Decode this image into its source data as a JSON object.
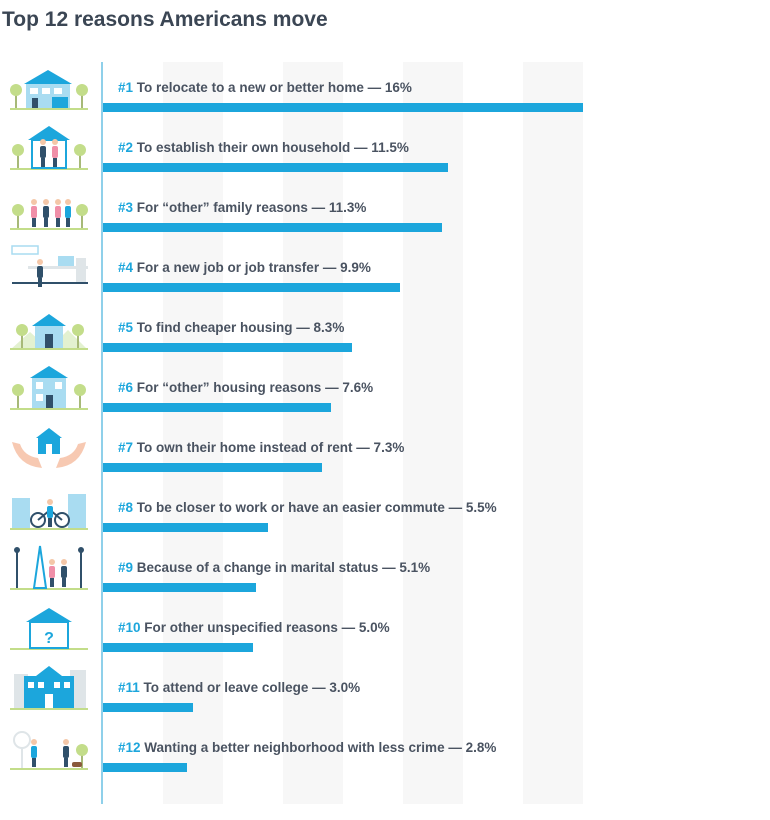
{
  "title": "Top 12 reasons Americans move",
  "colors": {
    "bar": "#1ca6dc",
    "rank": "#1ca6dc",
    "text": "#4a5361",
    "axis": "#8fd0ea"
  },
  "chart_data": {
    "type": "bar",
    "orientation": "horizontal",
    "title": "Top 12 reasons Americans move",
    "xlim": [
      0,
      16
    ],
    "grid": "alternating vertical stripes",
    "categories": [
      "To relocate to a new or better home",
      "To establish their own household",
      "For “other” family reasons",
      "For a new job or job transfer",
      "To find cheaper housing",
      "For “other” housing reasons",
      "To own their home instead of rent",
      "To be closer to work or have an easier commute",
      "Because of a change in marital status",
      "For other unspecified reasons",
      "To attend or leave college",
      "Wanting a better neighborhood with less crime"
    ],
    "values": [
      16,
      11.5,
      11.3,
      9.9,
      8.3,
      7.6,
      7.3,
      5.5,
      5.1,
      5.0,
      3.0,
      2.8
    ],
    "items": [
      {
        "rank": "#1",
        "text": "To relocate to a new or better home — 16%",
        "value": 16,
        "icon": "house-with-garage-icon"
      },
      {
        "rank": "#2",
        "text": "To establish their own household — 11.5%",
        "value": 11.5,
        "icon": "couple-in-house-icon"
      },
      {
        "rank": "#3",
        "text": "For “other” family reasons — 11.3%",
        "value": 11.3,
        "icon": "family-in-park-icon"
      },
      {
        "rank": "#4",
        "text": "For a new job or job transfer — 9.9%",
        "value": 9.9,
        "icon": "person-at-desk-icon"
      },
      {
        "rank": "#5",
        "text": "To find cheaper housing — 8.3%",
        "value": 8.3,
        "icon": "small-house-hills-icon"
      },
      {
        "rank": "#6",
        "text": "For “other” housing reasons — 7.6%",
        "value": 7.6,
        "icon": "two-story-house-icon"
      },
      {
        "rank": "#7",
        "text": "To own their home instead of rent — 7.3%",
        "value": 7.3,
        "icon": "hands-holding-house-icon"
      },
      {
        "rank": "#8",
        "text": "To be closer to work or have an easier commute — 5.5%",
        "value": 5.5,
        "icon": "cyclist-in-city-icon"
      },
      {
        "rank": "#9",
        "text": "Because of a change in marital status — 5.1%",
        "value": 5.1,
        "icon": "proposal-icon"
      },
      {
        "rank": "#10",
        "text": "For other unspecified reasons — 5.0%",
        "value": 5.0,
        "icon": "question-house-icon"
      },
      {
        "rank": "#11",
        "text": "To attend or leave college — 3.0%",
        "value": 3.0,
        "icon": "college-building-icon"
      },
      {
        "rank": "#12",
        "text": "Wanting a better neighborhood with less crime — 2.8%",
        "value": 2.8,
        "icon": "neighborhood-walk-icon"
      }
    ]
  }
}
